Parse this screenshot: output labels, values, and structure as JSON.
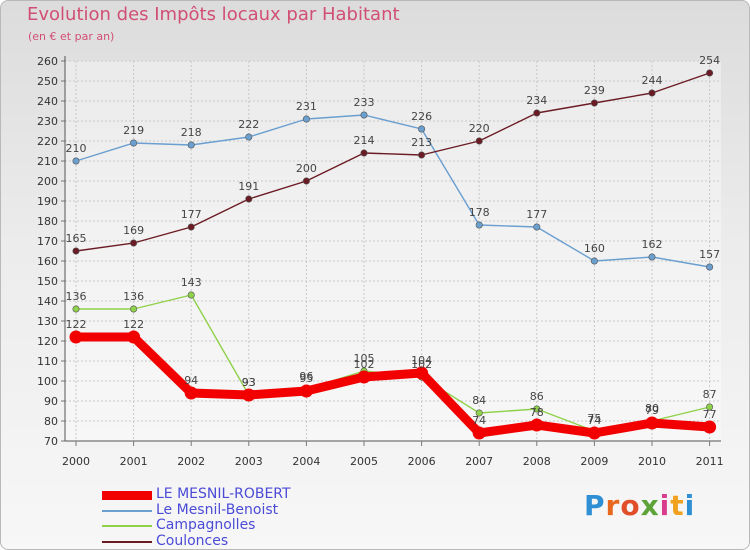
{
  "title": "Evolution des Impôts locaux par Habitant",
  "subtitle": "(en € et par an)",
  "logo": {
    "text": "Proxiti",
    "letters": [
      "P",
      "r",
      "o",
      "x",
      "i",
      "t",
      "i"
    ],
    "colors": [
      "#2f8fd4",
      "#e9681f",
      "#e04e2a",
      "#5da33a",
      "#d93c8c",
      "#f0a21e",
      "#2f8fd4"
    ]
  },
  "chart_data": {
    "type": "line",
    "title": "Evolution des Impôts locaux par Habitant",
    "subtitle": "(en € et par an)",
    "xlabel": "",
    "ylabel": "",
    "categories": [
      "2000",
      "2001",
      "2002",
      "2003",
      "2004",
      "2005",
      "2006",
      "2007",
      "2008",
      "2009",
      "2010",
      "2011"
    ],
    "ylim": [
      70,
      260
    ],
    "ystep": 10,
    "grid": true,
    "series": [
      {
        "name": "LE MESNIL-ROBERT",
        "color": "#f20000",
        "values": [
          122,
          122,
          94,
          93,
          95,
          102,
          104,
          74,
          78,
          74,
          79,
          77
        ],
        "labels": [
          "122",
          "122",
          "94",
          "93",
          "95",
          "102",
          "104",
          "74",
          "78",
          "74",
          "79",
          "77"
        ]
      },
      {
        "name": "Le Mesnil-Benoist",
        "color": "#6a9fd0",
        "values": [
          210,
          219,
          218,
          222,
          231,
          233,
          226,
          178,
          177,
          160,
          162,
          157
        ],
        "labels": [
          "210",
          "219",
          "218",
          "222",
          "231",
          "233",
          "226",
          "178",
          "177",
          "160",
          "162",
          "157"
        ]
      },
      {
        "name": "Campagnolles",
        "color": "#8fd14a",
        "values": [
          136,
          136,
          143,
          93,
          96,
          105,
          102,
          84,
          86,
          75,
          80,
          87
        ],
        "labels": [
          "136",
          "136",
          "143",
          "93",
          "96",
          "105",
          "102",
          "84",
          "86",
          "75",
          "80",
          "87"
        ]
      },
      {
        "name": "Coulonces",
        "color": "#6b1b24",
        "values": [
          165,
          169,
          177,
          191,
          200,
          214,
          213,
          220,
          234,
          239,
          244,
          254
        ],
        "labels": [
          "165",
          "169",
          "177",
          "191",
          "200",
          "214",
          "213",
          "220",
          "234",
          "239",
          "244",
          "254"
        ]
      }
    ]
  }
}
